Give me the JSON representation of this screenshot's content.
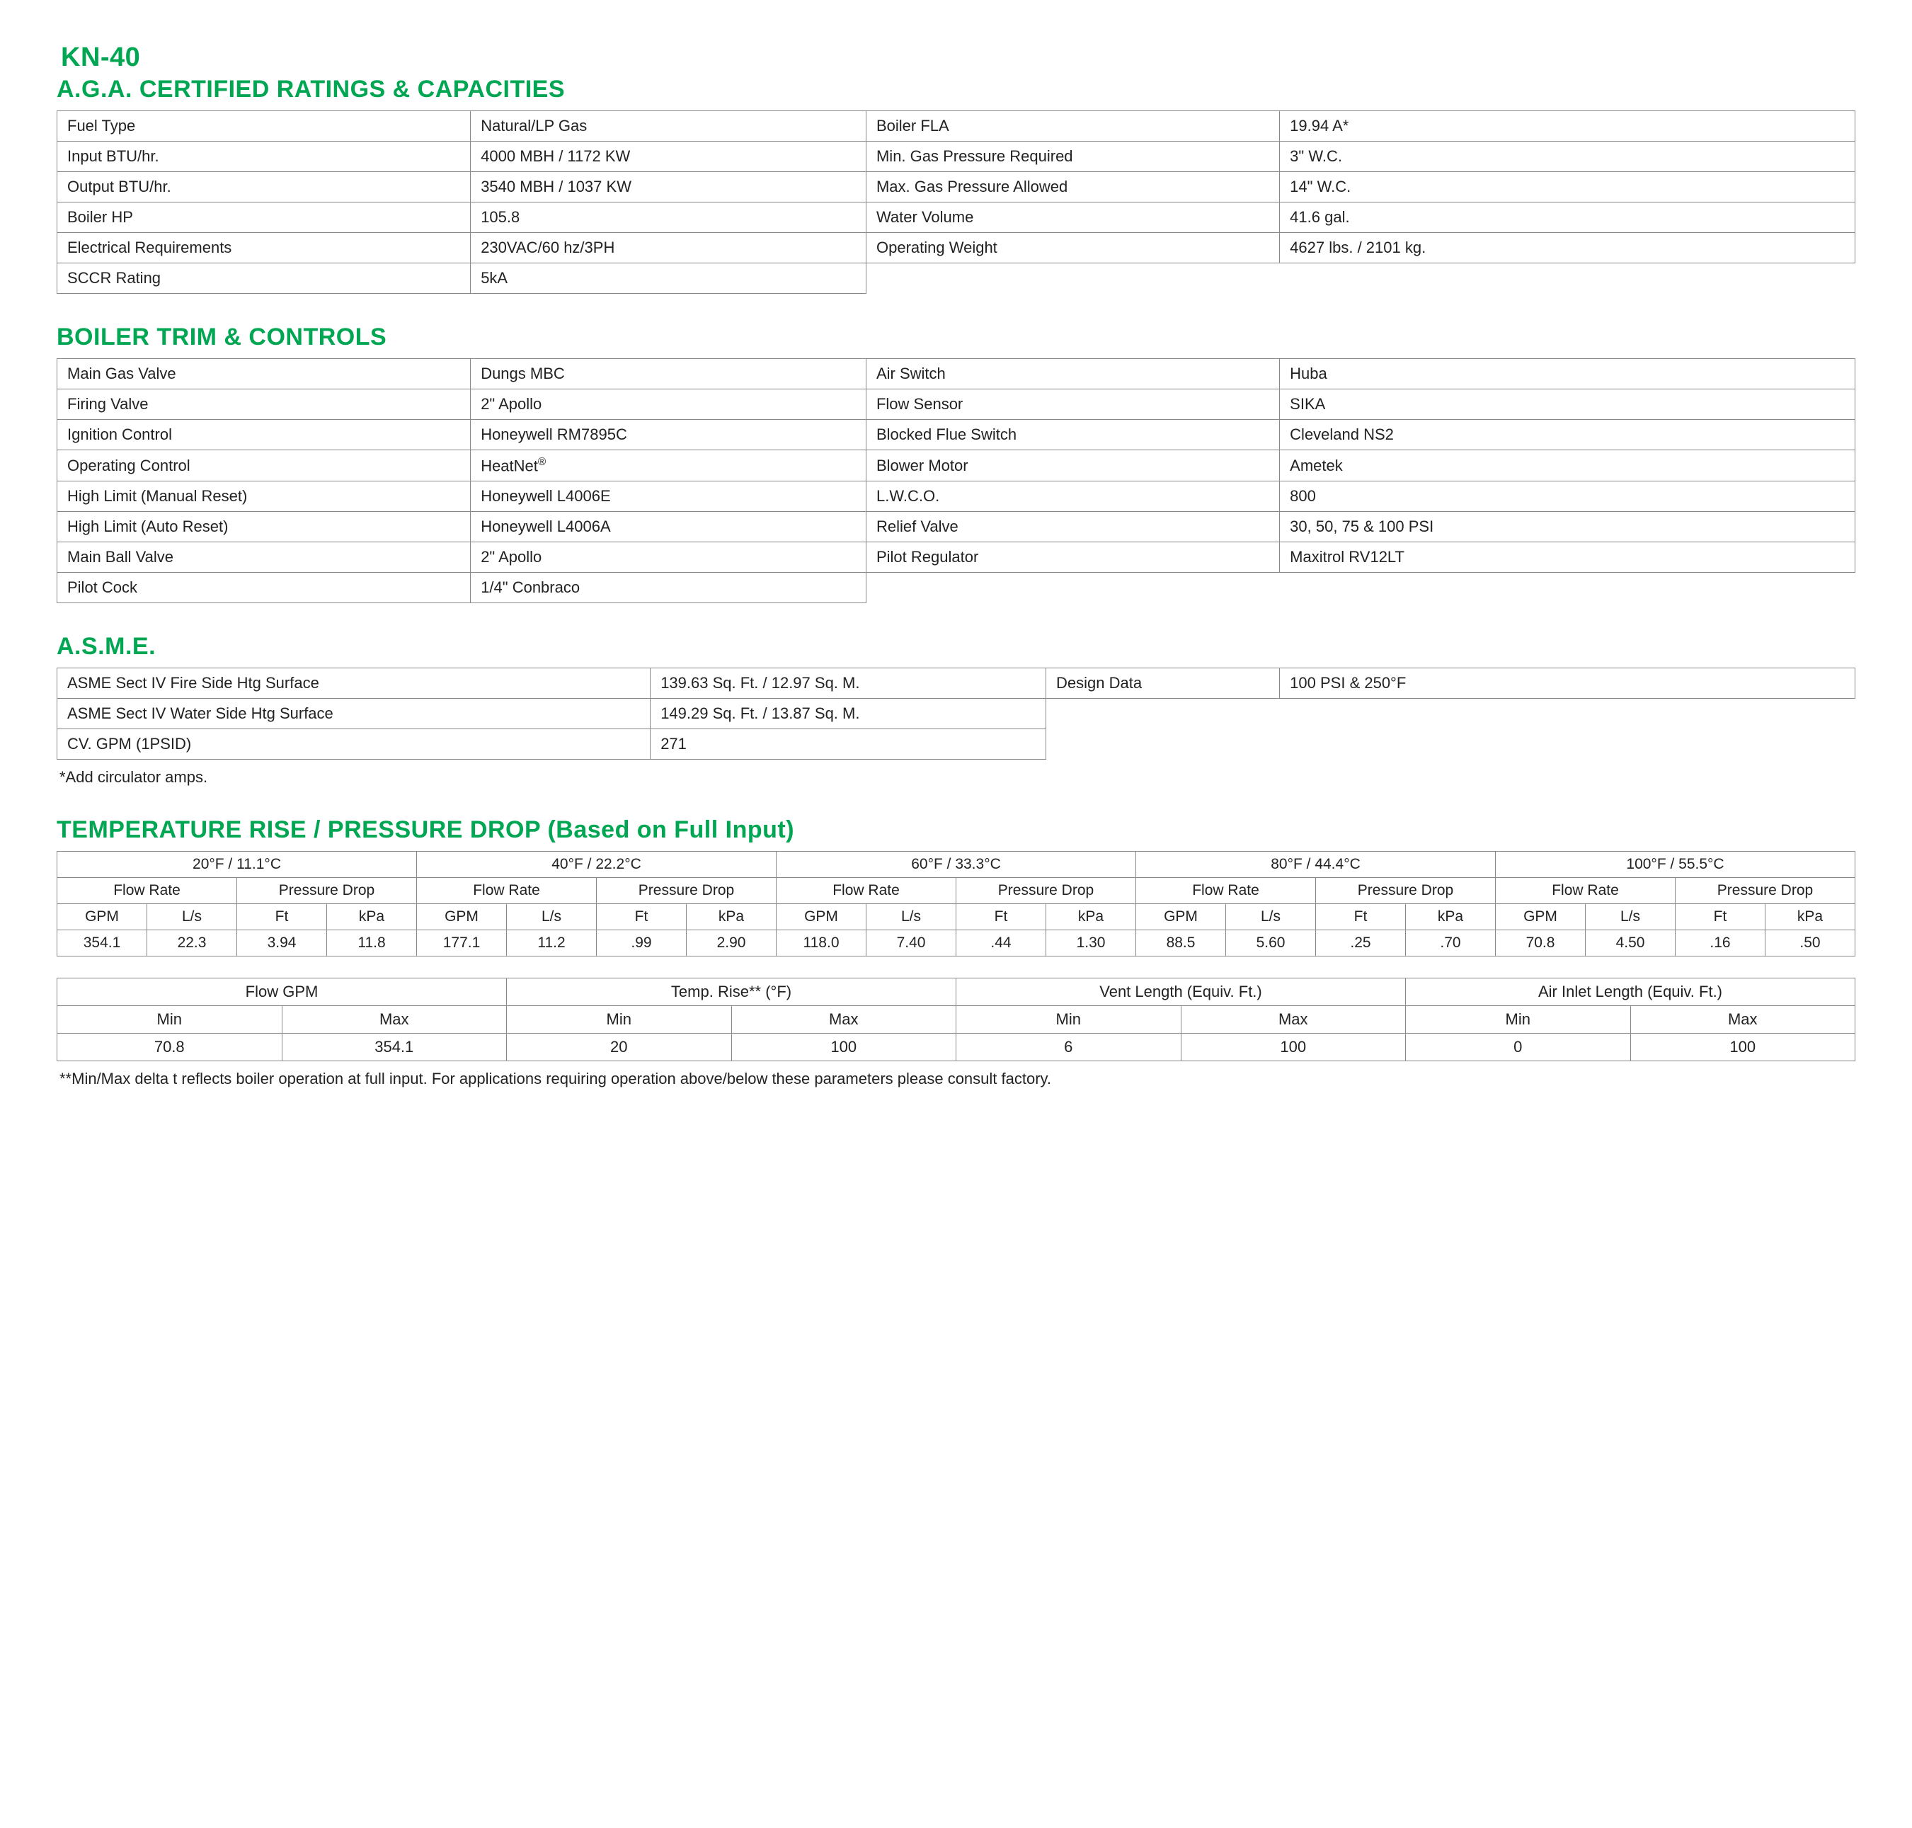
{
  "model": "KN-40",
  "colors": {
    "accent": "#00a651",
    "border": "#888888",
    "text": "#222222",
    "bg": "#ffffff"
  },
  "ratings": {
    "title": "A.G.A. CERTIFIED RATINGS & CAPACITIES",
    "rows": [
      [
        "Fuel Type",
        "Natural/LP Gas",
        "Boiler FLA",
        "19.94 A*"
      ],
      [
        "Input BTU/hr.",
        "4000 MBH / 1172 KW",
        "Min. Gas Pressure Required",
        "3\" W.C."
      ],
      [
        "Output BTU/hr.",
        "3540 MBH / 1037 KW",
        "Max. Gas Pressure Allowed",
        "14\" W.C."
      ],
      [
        "Boiler HP",
        "105.8",
        "Water Volume",
        "41.6 gal."
      ],
      [
        "Electrical Requirements",
        "230VAC/60 hz/3PH",
        "Operating Weight",
        "4627 lbs. / 2101 kg."
      ],
      [
        "SCCR Rating",
        "5kA",
        "",
        ""
      ]
    ]
  },
  "trim": {
    "title": "BOILER TRIM & CONTROLS",
    "rows": [
      [
        "Main Gas Valve",
        "Dungs MBC",
        "Air Switch",
        "Huba"
      ],
      [
        "Firing Valve",
        "2\" Apollo",
        "Flow Sensor",
        "SIKA"
      ],
      [
        "Ignition Control",
        "Honeywell RM7895C",
        "Blocked Flue Switch",
        "Cleveland NS2"
      ],
      [
        "Operating Control",
        "HeatNet®",
        "Blower Motor",
        "Ametek"
      ],
      [
        "High Limit (Manual Reset)",
        "Honeywell L4006E",
        "L.W.C.O.",
        "800"
      ],
      [
        "High Limit (Auto Reset)",
        "Honeywell L4006A",
        "Relief Valve",
        "30, 50, 75 & 100 PSI"
      ],
      [
        "Main Ball Valve",
        "2\" Apollo",
        "Pilot Regulator",
        "Maxitrol RV12LT"
      ],
      [
        "Pilot Cock",
        "1/4\" Conbraco",
        "",
        ""
      ]
    ]
  },
  "asme": {
    "title": "A.S.M.E.",
    "rows": [
      [
        "ASME Sect IV Fire Side Htg Surface",
        "139.63 Sq. Ft. / 12.97 Sq. M.",
        "Design Data",
        "100 PSI & 250°F"
      ],
      [
        "ASME Sect IV Water Side Htg Surface",
        "149.29 Sq. Ft. / 13.87 Sq. M.",
        "",
        ""
      ],
      [
        "CV. GPM (1PSID)",
        "271",
        "",
        ""
      ]
    ],
    "note": "*Add circulator amps."
  },
  "temp": {
    "title": "TEMPERATURE RISE / PRESSURE DROP (Based on Full Input)",
    "groups": [
      "20°F / 11.1°C",
      "40°F / 22.2°C",
      "60°F / 33.3°C",
      "80°F / 44.4°C",
      "100°F / 55.5°C"
    ],
    "sub1": [
      "Flow Rate",
      "Pressure Drop"
    ],
    "units": [
      "GPM",
      "L/s",
      "Ft",
      "kPa"
    ],
    "data": [
      [
        "354.1",
        "22.3",
        "3.94",
        "11.8",
        "177.1",
        "11.2",
        ".99",
        "2.90",
        "118.0",
        "7.40",
        ".44",
        "1.30",
        "88.5",
        "5.60",
        ".25",
        ".70",
        "70.8",
        "4.50",
        ".16",
        ".50"
      ]
    ]
  },
  "minmax": {
    "headers": [
      "Flow GPM",
      "Temp. Rise** (°F)",
      "Vent Length (Equiv. Ft.)",
      "Air Inlet Length (Equiv. Ft.)"
    ],
    "sub": [
      "Min",
      "Max"
    ],
    "row": [
      "70.8",
      "354.1",
      "20",
      "100",
      "6",
      "100",
      "0",
      "100"
    ],
    "note": "**Min/Max delta t reflects boiler operation at full input. For applications requiring operation above/below these parameters please consult factory."
  }
}
